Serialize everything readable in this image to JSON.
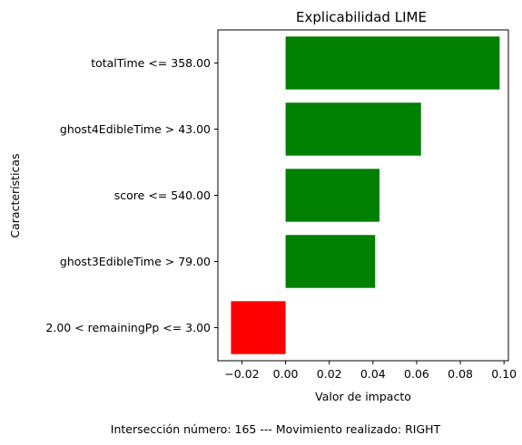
{
  "chart_data": {
    "type": "bar",
    "orientation": "horizontal",
    "title": "Explicabilidad LIME",
    "xlabel": "Valor de impacto",
    "ylabel": "Características",
    "categories": [
      "totalTime <= 358.00",
      "ghost4EdibleTime > 43.00",
      "score <= 540.00",
      "ghost3EdibleTime > 79.00",
      "2.00 < remainingPp <= 3.00"
    ],
    "values": [
      0.098,
      0.062,
      0.043,
      0.041,
      -0.025
    ],
    "bar_colors": [
      "#008000",
      "#008000",
      "#008000",
      "#008000",
      "#ff0000"
    ],
    "xlim": [
      -0.031,
      0.102
    ],
    "xticks": [
      -0.02,
      0.0,
      0.02,
      0.04,
      0.06,
      0.08,
      0.1
    ],
    "xtick_labels": [
      "−0.02",
      "0.00",
      "0.02",
      "0.04",
      "0.06",
      "0.08",
      "0.10"
    ],
    "grid": false,
    "legend": "none"
  },
  "caption": "Intersección número: 165 --- Movimiento realizado: RIGHT"
}
